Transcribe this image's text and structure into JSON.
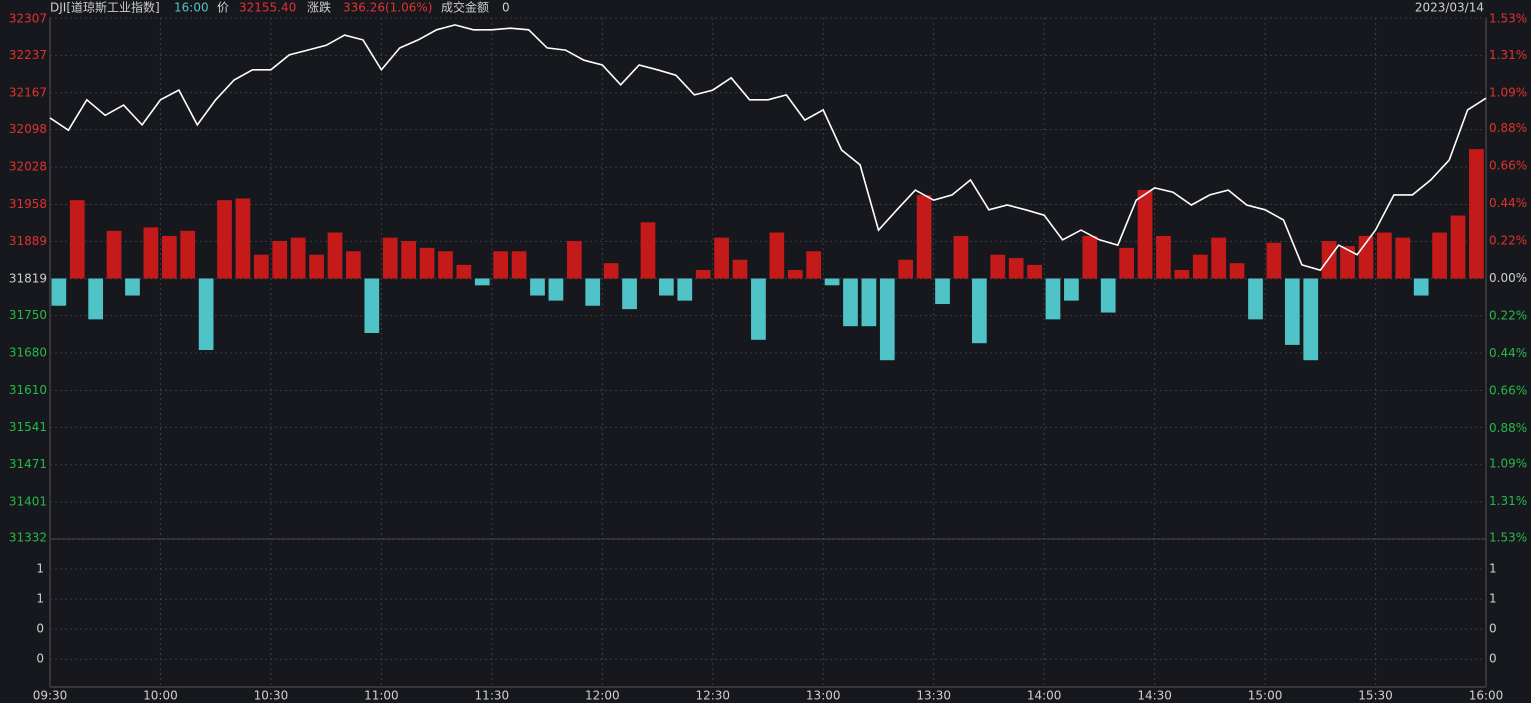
{
  "header": {
    "symbol": "DJI[道琼斯工业指数]",
    "time": "16:00",
    "price_label": "价",
    "price": "32155.40",
    "change_label": "涨跌",
    "change": "336.26(1.06%)",
    "turnover_label": "成交金额",
    "turnover": "0",
    "date": "2023/03/14"
  },
  "chart_data": {
    "type": "line",
    "x": [
      "09:30",
      "09:35",
      "09:40",
      "09:45",
      "09:50",
      "09:55",
      "10:00",
      "10:05",
      "10:10",
      "10:15",
      "10:20",
      "10:25",
      "10:30",
      "10:35",
      "10:40",
      "10:45",
      "10:50",
      "10:55",
      "11:00",
      "11:05",
      "11:10",
      "11:15",
      "11:20",
      "11:25",
      "11:30",
      "11:35",
      "11:40",
      "11:45",
      "11:50",
      "11:55",
      "12:00",
      "12:05",
      "12:10",
      "12:15",
      "12:20",
      "12:25",
      "12:30",
      "12:35",
      "12:40",
      "12:45",
      "12:50",
      "12:55",
      "13:00",
      "13:05",
      "13:10",
      "13:15",
      "13:20",
      "13:25",
      "13:30",
      "13:35",
      "13:40",
      "13:45",
      "13:50",
      "13:55",
      "14:00",
      "14:05",
      "14:10",
      "14:15",
      "14:20",
      "14:25",
      "14:30",
      "14:35",
      "14:40",
      "14:45",
      "14:50",
      "14:55",
      "15:00",
      "15:05",
      "15:10",
      "15:15",
      "15:20",
      "15:25",
      "15:30",
      "15:35",
      "15:40",
      "15:45",
      "15:50",
      "15:55",
      "16:00"
    ],
    "series": [
      {
        "name": "价",
        "color": "#ffffff",
        "values": [
          32120,
          32097,
          32154,
          32125,
          32144,
          32107,
          32154,
          32172,
          32107,
          32154,
          32191,
          32210,
          32210,
          32238,
          32247,
          32256,
          32275,
          32266,
          32210,
          32251,
          32266,
          32285,
          32294,
          32285,
          32285,
          32288,
          32285,
          32251,
          32247,
          32228,
          32219,
          32182,
          32219,
          32210,
          32200,
          32163,
          32172,
          32195,
          32154,
          32154,
          32163,
          32116,
          32135,
          32060,
          32032,
          31910,
          31948,
          31985,
          31966,
          31976,
          32004,
          31948,
          31957,
          31948,
          31938,
          31892,
          31910,
          31892,
          31882,
          31966,
          31989,
          31981,
          31957,
          31976,
          31985,
          31957,
          31948,
          31929,
          31845,
          31835,
          31882,
          31864,
          31910,
          31976,
          31976,
          32004,
          32041,
          32135,
          32157
        ]
      },
      {
        "name": "涨跌",
        "type": "bar",
        "axis": "y2",
        "up_color": "#c41a1a",
        "down_color": "#4fc3c7",
        "x": [
          "09:30",
          "09:35",
          "09:40",
          "09:45",
          "09:50",
          "09:55",
          "10:00",
          "10:05",
          "10:10",
          "10:15",
          "10:20",
          "10:25",
          "10:30",
          "10:35",
          "10:40",
          "10:45",
          "10:50",
          "10:55",
          "11:00",
          "11:05",
          "11:10",
          "11:15",
          "11:20",
          "11:25",
          "11:30",
          "11:35",
          "11:40",
          "11:45",
          "11:50",
          "11:55",
          "12:00",
          "12:05",
          "12:10",
          "12:15",
          "12:20",
          "12:25",
          "12:30",
          "12:35",
          "12:40",
          "12:45",
          "12:50",
          "12:55",
          "13:00",
          "13:05",
          "13:10",
          "13:15",
          "13:20",
          "13:25",
          "13:30",
          "13:35",
          "13:40",
          "13:45",
          "13:50",
          "13:55",
          "14:00",
          "14:05",
          "14:10",
          "14:15",
          "14:20",
          "14:25",
          "14:30",
          "14:35",
          "14:40",
          "14:45",
          "14:50",
          "14:55",
          "15:00",
          "15:05",
          "15:10",
          "15:15",
          "15:20",
          "15:25",
          "15:30",
          "15:35",
          "15:40",
          "15:45",
          "15:50",
          "15:55"
        ],
        "values": [
          -0.16,
          0.46,
          -0.24,
          0.28,
          -0.1,
          0.3,
          0.25,
          0.28,
          -0.42,
          0.46,
          0.47,
          0.14,
          0.22,
          0.24,
          0.14,
          0.27,
          0.16,
          -0.32,
          0.24,
          0.22,
          0.18,
          0.16,
          0.08,
          -0.04,
          0.16,
          0.16,
          -0.1,
          -0.13,
          0.22,
          -0.16,
          0.09,
          -0.18,
          0.33,
          -0.1,
          -0.13,
          0.05,
          0.24,
          0.11,
          -0.36,
          0.27,
          0.05,
          0.16,
          -0.04,
          -0.28,
          -0.28,
          -0.48,
          0.11,
          0.49,
          -0.15,
          0.25,
          -0.38,
          0.14,
          0.12,
          0.08,
          -0.24,
          -0.13,
          0.25,
          -0.2,
          0.18,
          0.52,
          0.25,
          0.05,
          0.14,
          0.24,
          0.09,
          -0.24,
          0.21,
          -0.39,
          -0.48,
          0.22,
          0.19,
          0.25,
          0.27,
          0.24,
          -0.1,
          0.27,
          0.37,
          0.76
        ]
      }
    ],
    "ylim": [
      31332,
      32307
    ],
    "yticks": [
      32307,
      32237,
      32167,
      32098,
      32028,
      31958,
      31889,
      31819,
      31750,
      31680,
      31610,
      31541,
      31471,
      31401,
      31332
    ],
    "y2lim": [
      -1.53,
      1.53
    ],
    "y2ticks": [
      {
        "value": 1.53,
        "label": "1.53%"
      },
      {
        "value": 1.31,
        "label": "1.31%"
      },
      {
        "value": 1.09,
        "label": "1.09%"
      },
      {
        "value": 0.88,
        "label": "0.88%"
      },
      {
        "value": 0.66,
        "label": "0.66%"
      },
      {
        "value": 0.44,
        "label": "0.44%"
      },
      {
        "value": 0.22,
        "label": "0.22%"
      },
      {
        "value": 0,
        "label": "0.00%"
      },
      {
        "value": -0.22,
        "label": "0.22%"
      },
      {
        "value": -0.44,
        "label": "0.44%"
      },
      {
        "value": -0.66,
        "label": "0.66%"
      },
      {
        "value": -0.88,
        "label": "0.88%"
      },
      {
        "value": -1.09,
        "label": "1.09%"
      },
      {
        "value": -1.31,
        "label": "1.31%"
      },
      {
        "value": -1.53,
        "label": "1.53%"
      }
    ],
    "xticks": [
      "09:30",
      "10:00",
      "10:30",
      "11:00",
      "11:30",
      "12:00",
      "12:30",
      "13:00",
      "13:30",
      "14:00",
      "14:30",
      "15:00",
      "15:30",
      "16:00"
    ],
    "volume_ylim": [
      -0.37,
      1.6
    ],
    "volume_yticks": [
      {
        "value": 1.2,
        "label": "1"
      },
      {
        "value": 0.8,
        "label": "1"
      },
      {
        "value": 0.4,
        "label": "0"
      },
      {
        "value": 0,
        "label": "0"
      }
    ],
    "grid": true,
    "up_text_color": "#e0312f",
    "down_text_color": "#27b84a",
    "flat_text_color": "#cfcfcf"
  }
}
